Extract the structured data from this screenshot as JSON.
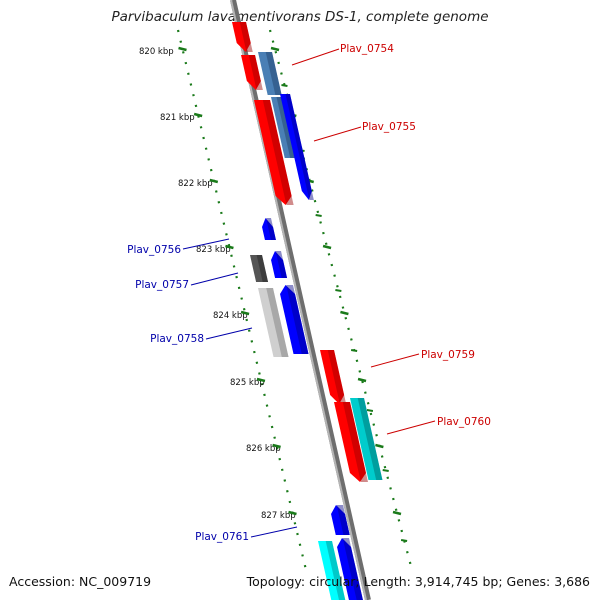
{
  "title": "Parvibaculum lavamentivorans DS-1, complete genome",
  "footer": {
    "accession": "Accession: NC_009719",
    "summary": "Topology: circular; Length: 3,914,745 bp; Genes: 3,686"
  },
  "axis": {
    "ticks": [
      "820 kbp",
      "821 kbp",
      "822 kbp",
      "823 kbp",
      "824 kbp",
      "825 kbp",
      "826 kbp",
      "827 kbp"
    ]
  },
  "colors": {
    "cds_forward": "#ff0000",
    "cds_reverse": "#0000ff",
    "label_forward": "#cc0000",
    "label_reverse": "#0000aa",
    "tick_dash": "#1a7a1a",
    "backbone": "#888888"
  },
  "genes": [
    {
      "name": "Plav_0754",
      "strand": "+"
    },
    {
      "name": "Plav_0755",
      "strand": "+"
    },
    {
      "name": "Plav_0756",
      "strand": "-"
    },
    {
      "name": "Plav_0757",
      "strand": "-"
    },
    {
      "name": "Plav_0758",
      "strand": "-"
    },
    {
      "name": "Plav_0759",
      "strand": "+"
    },
    {
      "name": "Plav_0760",
      "strand": "+"
    },
    {
      "name": "Plav_0761",
      "strand": "-"
    }
  ]
}
